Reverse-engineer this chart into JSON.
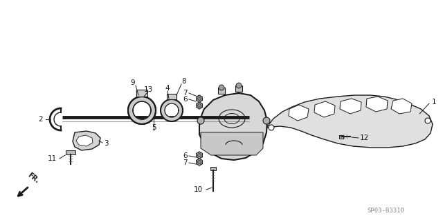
{
  "bg_color": "#ffffff",
  "line_color": "#1a1a1a",
  "diagram_code": "SP03-B3310",
  "text_color": "#1a1a1a",
  "gray_fill": "#d0d0d0",
  "light_gray": "#e8e8e8"
}
